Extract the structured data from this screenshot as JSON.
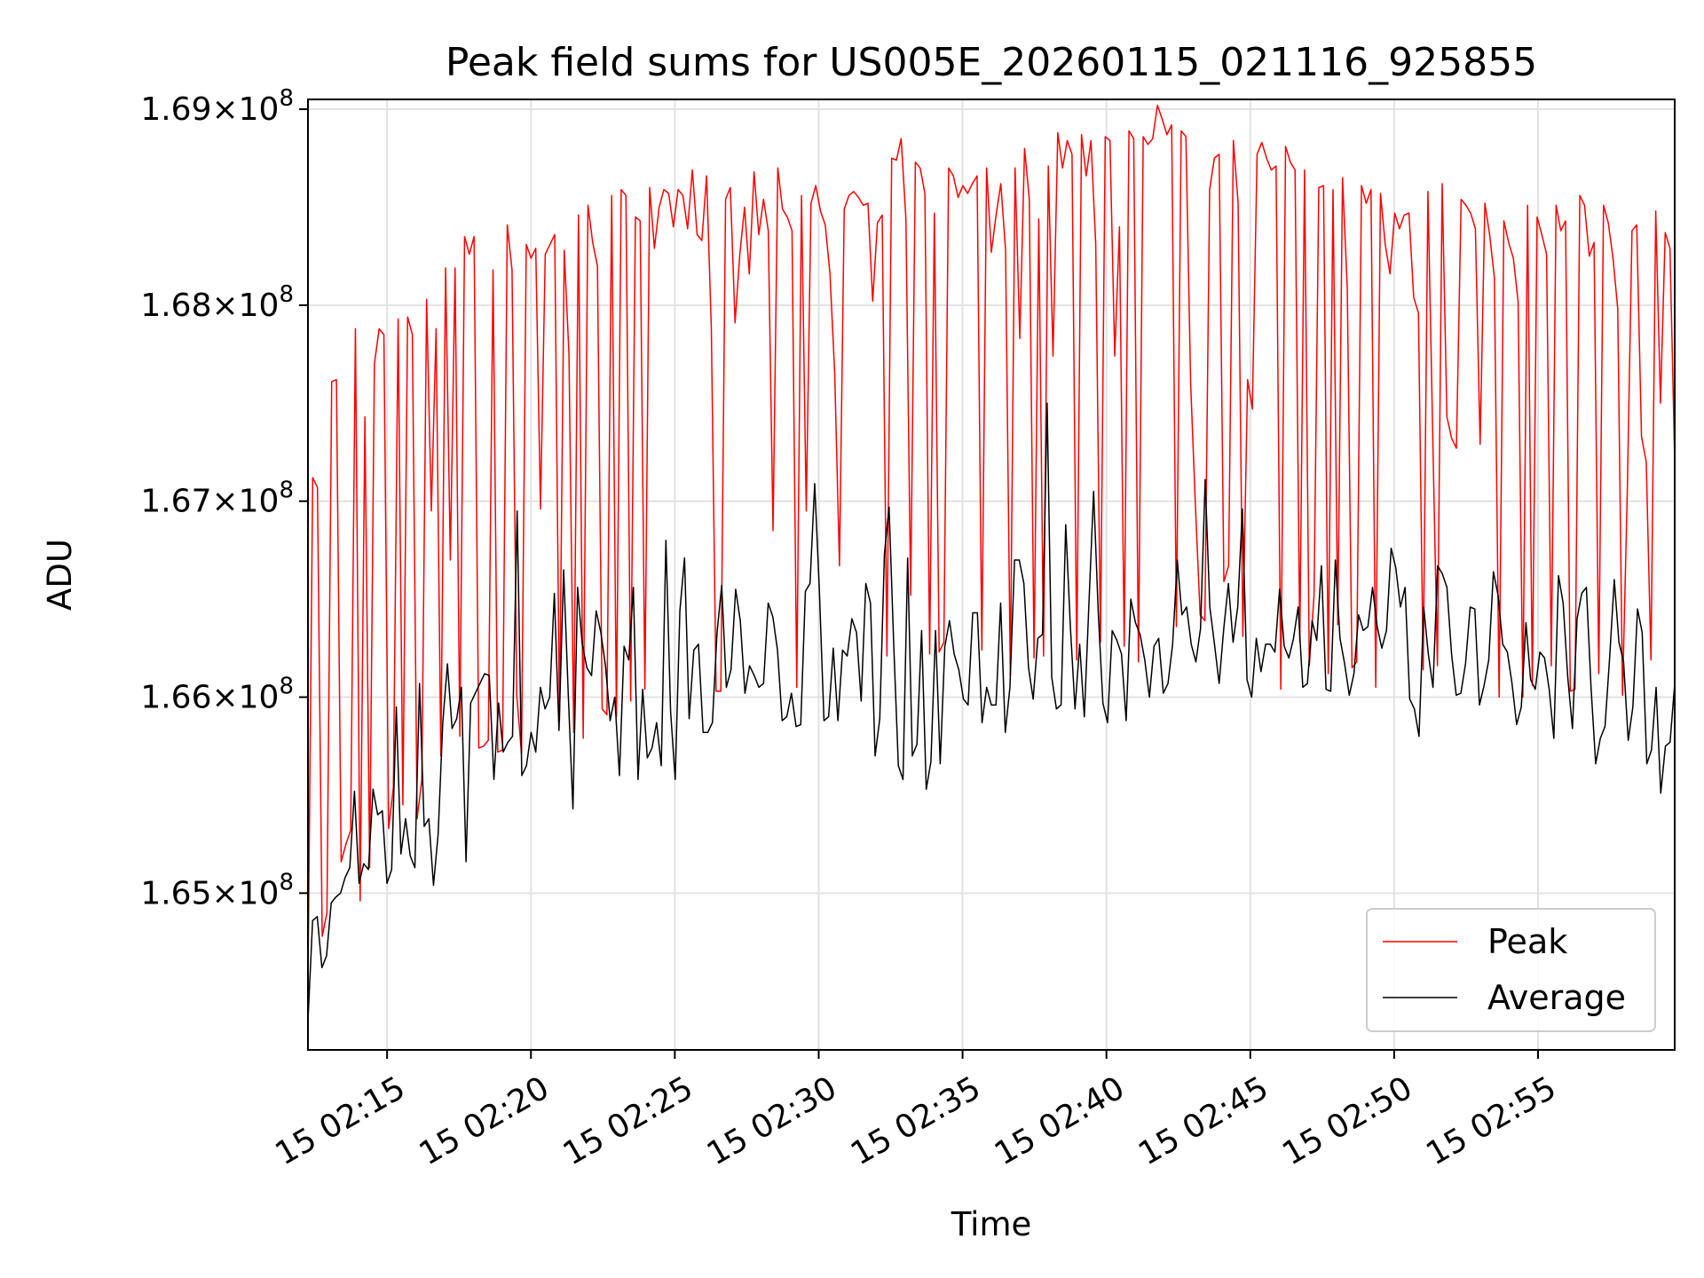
{
  "chart_data": {
    "type": "line",
    "title": "Peak field sums for US005E_20260115_021116_925855",
    "xlabel": "Time",
    "ylabel": "ADU",
    "x_start": "15 02:12:15",
    "x_end": "15 02:59:45",
    "xlim": [
      "15 02:12:15",
      "15 02:59:45"
    ],
    "ylim": [
      164200000,
      169050000
    ],
    "x_ticks": [
      "15 02:15",
      "15 02:20",
      "15 02:25",
      "15 02:30",
      "15 02:35",
      "15 02:40",
      "15 02:45",
      "15 02:50",
      "15 02:55"
    ],
    "y_ticks": [
      {
        "value": 165000000,
        "label_base": "1.65",
        "label_power": "8"
      },
      {
        "value": 166000000,
        "label_base": "1.66",
        "label_power": "8"
      },
      {
        "value": 167000000,
        "label_base": "1.67",
        "label_power": "8"
      },
      {
        "value": 168000000,
        "label_base": "1.68",
        "label_power": "8"
      },
      {
        "value": 169000000,
        "label_base": "1.69",
        "label_power": "8"
      }
    ],
    "grid": true,
    "legend_position": "lower-right",
    "series": [
      {
        "name": "Peak",
        "color": "#ff0000",
        "values": [
          164550000,
          167120000,
          167070000,
          164780000,
          164900000,
          167610000,
          167620000,
          165160000,
          165250000,
          165320000,
          167880000,
          164960000,
          167430000,
          165130000,
          167700000,
          167880000,
          167850000,
          165330000,
          165540000,
          167930000,
          165450000,
          167940000,
          167850000,
          165380000,
          165580000,
          168030000,
          166950000,
          167880000,
          165700000,
          168190000,
          166700000,
          168190000,
          165800000,
          168350000,
          168260000,
          168350000,
          165740000,
          165750000,
          165780000,
          168180000,
          165720000,
          165730000,
          168410000,
          168180000,
          166010000,
          165710000,
          168310000,
          168240000,
          168290000,
          166960000,
          168260000,
          168310000,
          168360000,
          165880000,
          168280000,
          167750000,
          165820000,
          168460000,
          165790000,
          168510000,
          168320000,
          168200000,
          165940000,
          165910000,
          168560000,
          165900000,
          168590000,
          168560000,
          165980000,
          168450000,
          168430000,
          166040000,
          168600000,
          168290000,
          168500000,
          168590000,
          168570000,
          168400000,
          168590000,
          168560000,
          168390000,
          168690000,
          168360000,
          168330000,
          168660000,
          167880000,
          166030000,
          166030000,
          168540000,
          168600000,
          167910000,
          168260000,
          168500000,
          168160000,
          168680000,
          168360000,
          168540000,
          168380000,
          166850000,
          168700000,
          168490000,
          168450000,
          168380000,
          166050000,
          168560000,
          166950000,
          168520000,
          168610000,
          168480000,
          168410000,
          168160000,
          167650000,
          166670000,
          168490000,
          168560000,
          168580000,
          168550000,
          168510000,
          168520000,
          168020000,
          168420000,
          168460000,
          166210000,
          168750000,
          168740000,
          168850000,
          168440000,
          166520000,
          168730000,
          168700000,
          168570000,
          166220000,
          168470000,
          166230000,
          166280000,
          168700000,
          168660000,
          168550000,
          168610000,
          168570000,
          168620000,
          168660000,
          166240000,
          168700000,
          168270000,
          168460000,
          168620000,
          168280000,
          166110000,
          168700000,
          167830000,
          168800000,
          168540000,
          166200000,
          168440000,
          166210000,
          168710000,
          167740000,
          168880000,
          168700000,
          168840000,
          168770000,
          166190000,
          168870000,
          168660000,
          168840000,
          168310000,
          166280000,
          168860000,
          168840000,
          167740000,
          168400000,
          166260000,
          168890000,
          168850000,
          166180000,
          168860000,
          168820000,
          168850000,
          169020000,
          168950000,
          168870000,
          168920000,
          166360000,
          168890000,
          168860000,
          167600000,
          166980000,
          166420000,
          166390000,
          168590000,
          168750000,
          168770000,
          166590000,
          166670000,
          168840000,
          168520000,
          166310000,
          167620000,
          167470000,
          168770000,
          168830000,
          168750000,
          168690000,
          168710000,
          166040000,
          168810000,
          168730000,
          168690000,
          166280000,
          168690000,
          166160000,
          166520000,
          168600000,
          168610000,
          166120000,
          168590000,
          166370000,
          168650000,
          168090000,
          166150000,
          166180000,
          168610000,
          168520000,
          168590000,
          166050000,
          168570000,
          168310000,
          168160000,
          168470000,
          168390000,
          168460000,
          168470000,
          168040000,
          167960000,
          166140000,
          168580000,
          167350000,
          166160000,
          168620000,
          167430000,
          167320000,
          167270000,
          168540000,
          168510000,
          168470000,
          168390000,
          167290000,
          168520000,
          168360000,
          168140000,
          166000000,
          168430000,
          168320000,
          168240000,
          168020000,
          166000000,
          168510000,
          166060000,
          168450000,
          168360000,
          168260000,
          166160000,
          168510000,
          168380000,
          168430000,
          166030000,
          166040000,
          168560000,
          168510000,
          168250000,
          168320000,
          166120000,
          168510000,
          168420000,
          168240000,
          167980000,
          166010000,
          167040000,
          168380000,
          168410000,
          167330000,
          167200000,
          166190000,
          168480000,
          167500000,
          168370000,
          168290000,
          167200000
        ]
      },
      {
        "name": "Average",
        "color": "#000000",
        "values": [
          164350000,
          164860000,
          164880000,
          164620000,
          164680000,
          164950000,
          164980000,
          165000000,
          165080000,
          165130000,
          165520000,
          165050000,
          165150000,
          165120000,
          165530000,
          165400000,
          165420000,
          165050000,
          165120000,
          165950000,
          165200000,
          165380000,
          165190000,
          165130000,
          166070000,
          165340000,
          165380000,
          165040000,
          165300000,
          165870000,
          166170000,
          165840000,
          165890000,
          166050000,
          165160000,
          165970000,
          166020000,
          166070000,
          166120000,
          166110000,
          165580000,
          165970000,
          165720000,
          165770000,
          165800000,
          166950000,
          165600000,
          165650000,
          165820000,
          165720000,
          166050000,
          165940000,
          166000000,
          166530000,
          165830000,
          166650000,
          166010000,
          165430000,
          166560000,
          166270000,
          166150000,
          166110000,
          166440000,
          166330000,
          166160000,
          165880000,
          166000000,
          165600000,
          166260000,
          166190000,
          166560000,
          165580000,
          166040000,
          165690000,
          165740000,
          165870000,
          165650000,
          166800000,
          165930000,
          165580000,
          166440000,
          166710000,
          165890000,
          166240000,
          166270000,
          165820000,
          165820000,
          165870000,
          166330000,
          166570000,
          166050000,
          166140000,
          166550000,
          166390000,
          166020000,
          166160000,
          166110000,
          166050000,
          166070000,
          166480000,
          166410000,
          166240000,
          165880000,
          165900000,
          166020000,
          165850000,
          165860000,
          166540000,
          166580000,
          167090000,
          166550000,
          165880000,
          165900000,
          166250000,
          165880000,
          166240000,
          166210000,
          166400000,
          166330000,
          165980000,
          166580000,
          166480000,
          165700000,
          165890000,
          166730000,
          166970000,
          166270000,
          165650000,
          165580000,
          166710000,
          165700000,
          165760000,
          166340000,
          165530000,
          165670000,
          166340000,
          165660000,
          166260000,
          166390000,
          166220000,
          166140000,
          165990000,
          165960000,
          166430000,
          166430000,
          165870000,
          166050000,
          165960000,
          165960000,
          166480000,
          165820000,
          166050000,
          166700000,
          166700000,
          166580000,
          166150000,
          165990000,
          166300000,
          166320000,
          167500000,
          166100000,
          165940000,
          165960000,
          166880000,
          166360000,
          165940000,
          166270000,
          165900000,
          166480000,
          167050000,
          166430000,
          165970000,
          165870000,
          166340000,
          166290000,
          166220000,
          165880000,
          166500000,
          166380000,
          166320000,
          166190000,
          166000000,
          166260000,
          166300000,
          166020000,
          166070000,
          166270000,
          166700000,
          166420000,
          166460000,
          166270000,
          166180000,
          166350000,
          167110000,
          166460000,
          166270000,
          166070000,
          166350000,
          166580000,
          166280000,
          166460000,
          166960000,
          166090000,
          166000000,
          166300000,
          166130000,
          166270000,
          166270000,
          166230000,
          166550000,
          166260000,
          166200000,
          166300000,
          166460000,
          166050000,
          166070000,
          166390000,
          166290000,
          166670000,
          166040000,
          166030000,
          166700000,
          166300000,
          166170000,
          166010000,
          166120000,
          166420000,
          166340000,
          166360000,
          166560000,
          166360000,
          166250000,
          166340000,
          166760000,
          166660000,
          166460000,
          166560000,
          165990000,
          165940000,
          165800000,
          166460000,
          166220000,
          166050000,
          166670000,
          166630000,
          166560000,
          166220000,
          166010000,
          166020000,
          166170000,
          166460000,
          166450000,
          165960000,
          166060000,
          166190000,
          166640000,
          166520000,
          166270000,
          166230000,
          166070000,
          165860000,
          165950000,
          166380000,
          166090000,
          166040000,
          166230000,
          166200000,
          166040000,
          165790000,
          166620000,
          166480000,
          166100000,
          165840000,
          166400000,
          166530000,
          166560000,
          166050000,
          165660000,
          165790000,
          165850000,
          166200000,
          166600000,
          166280000,
          166180000,
          165780000,
          165950000,
          166450000,
          166330000,
          165660000,
          165730000,
          166050000,
          165510000,
          165750000,
          165770000,
          166070000
        ]
      }
    ]
  }
}
